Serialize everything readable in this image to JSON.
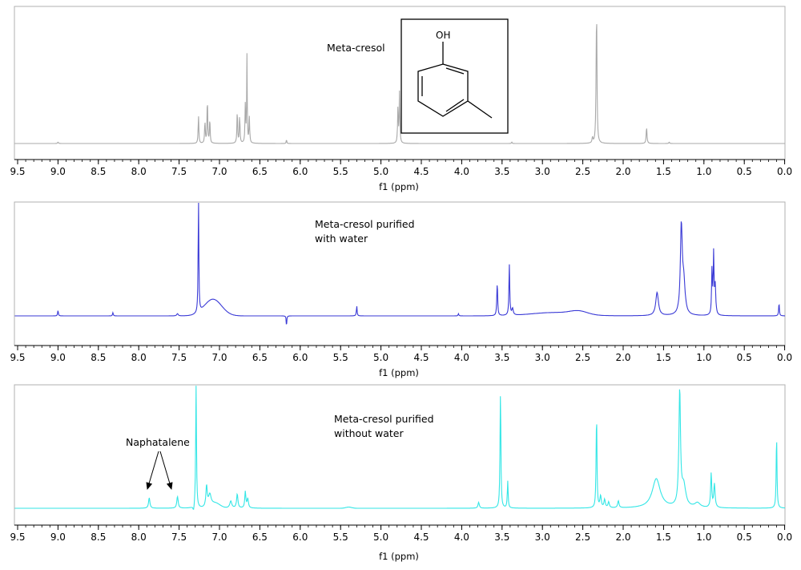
{
  "chart_data": [
    {
      "type": "line",
      "title": "",
      "xlabel": "f1 (ppm)",
      "ylabel": "",
      "xlim": [
        9.5,
        0.0
      ],
      "x_reversed": true,
      "xticks": [
        "9.5",
        "9.0",
        "8.5",
        "8.0",
        "7.5",
        "7.0",
        "6.5",
        "6.0",
        "5.5",
        "5.0",
        "4.5",
        "4.0",
        "3.5",
        "3.0",
        "2.5",
        "2.0",
        "1.5",
        "1.0",
        "0.5",
        "0.0"
      ],
      "grid": false,
      "legend": "none",
      "annotations": [
        "Meta-cresol"
      ],
      "structure_label": "OH",
      "series": [
        {
          "color": "#a8a8a8",
          "peaks": [
            {
              "x": 9.0,
              "h": 0.01,
              "w": 0.006
            },
            {
              "x": 7.26,
              "h": 0.2,
              "w": 0.005
            },
            {
              "x": 7.18,
              "h": 0.16,
              "w": 0.005
            },
            {
              "x": 7.15,
              "h": 0.33,
              "w": 0.005
            },
            {
              "x": 7.12,
              "h": 0.18,
              "w": 0.005
            },
            {
              "x": 6.78,
              "h": 0.24,
              "w": 0.005
            },
            {
              "x": 6.75,
              "h": 0.2,
              "w": 0.005
            },
            {
              "x": 6.68,
              "h": 0.28,
              "w": 0.005
            },
            {
              "x": 6.66,
              "h": 0.64,
              "w": 0.004
            },
            {
              "x": 6.63,
              "h": 0.19,
              "w": 0.005
            },
            {
              "x": 6.17,
              "h": 0.03,
              "w": 0.004
            },
            {
              "x": 4.79,
              "h": 0.26,
              "w": 0.005
            },
            {
              "x": 4.77,
              "h": 0.38,
              "w": 0.005
            },
            {
              "x": 3.38,
              "h": 0.01,
              "w": 0.005
            },
            {
              "x": 2.38,
              "h": 0.04,
              "w": 0.006
            },
            {
              "x": 2.33,
              "h": 1.0,
              "w": 0.006
            },
            {
              "x": 1.71,
              "h": 0.12,
              "w": 0.006
            },
            {
              "x": 1.43,
              "h": 0.01,
              "w": 0.006
            }
          ],
          "bumps": []
        },
        {
          "color": "#3a3ad6",
          "peaks": [
            {
              "x": 9.0,
              "h": 0.05,
              "w": 0.005
            },
            {
              "x": 8.32,
              "h": 0.03,
              "w": 0.005
            },
            {
              "x": 7.52,
              "h": 0.02,
              "w": 0.01
            },
            {
              "x": 7.26,
              "h": 1.0,
              "w": 0.005
            },
            {
              "x": 6.17,
              "h": 0.12,
              "w": 0.004
            },
            {
              "x": 5.3,
              "h": 0.09,
              "w": 0.005
            },
            {
              "x": 4.04,
              "h": 0.02,
              "w": 0.005
            },
            {
              "x": 3.56,
              "h": 0.3,
              "w": 0.006
            },
            {
              "x": 3.41,
              "h": 0.46,
              "w": 0.006
            },
            {
              "x": 3.37,
              "h": 0.06,
              "w": 0.01
            },
            {
              "x": 1.58,
              "h": 0.21,
              "w": 0.02
            },
            {
              "x": 1.28,
              "h": 0.78,
              "w": 0.014
            },
            {
              "x": 1.25,
              "h": 0.28,
              "w": 0.02
            },
            {
              "x": 0.9,
              "h": 0.4,
              "w": 0.006
            },
            {
              "x": 0.88,
              "h": 0.54,
              "w": 0.006
            },
            {
              "x": 0.86,
              "h": 0.26,
              "w": 0.008
            },
            {
              "x": 0.07,
              "h": 0.12,
              "w": 0.005
            }
          ],
          "bumps": [
            {
              "x": 7.08,
              "h": 0.15,
              "w": 0.15
            },
            {
              "x": 2.85,
              "h": 0.03,
              "w": 0.4
            },
            {
              "x": 2.55,
              "h": 0.03,
              "w": 0.15
            }
          ],
          "negative_peaks": [
            {
              "x": 6.17,
              "h": 0.22,
              "w": 0.004
            }
          ]
        },
        {
          "color": "#33e6e6",
          "peaks": [
            {
              "x": 7.87,
              "h": 0.09,
              "w": 0.01
            },
            {
              "x": 7.52,
              "h": 0.1,
              "w": 0.01
            },
            {
              "x": 7.29,
              "h": 1.05,
              "w": 0.006
            },
            {
              "x": 7.16,
              "h": 0.18,
              "w": 0.01
            },
            {
              "x": 7.12,
              "h": 0.1,
              "w": 0.02
            },
            {
              "x": 6.86,
              "h": 0.06,
              "w": 0.015
            },
            {
              "x": 6.78,
              "h": 0.12,
              "w": 0.01
            },
            {
              "x": 6.68,
              "h": 0.14,
              "w": 0.008
            },
            {
              "x": 6.65,
              "h": 0.08,
              "w": 0.01
            },
            {
              "x": 3.79,
              "h": 0.05,
              "w": 0.01
            },
            {
              "x": 3.52,
              "h": 1.0,
              "w": 0.006
            },
            {
              "x": 3.43,
              "h": 0.23,
              "w": 0.006
            },
            {
              "x": 2.33,
              "h": 0.81,
              "w": 0.006
            },
            {
              "x": 2.28,
              "h": 0.1,
              "w": 0.01
            },
            {
              "x": 2.23,
              "h": 0.07,
              "w": 0.01
            },
            {
              "x": 2.18,
              "h": 0.05,
              "w": 0.01
            },
            {
              "x": 2.06,
              "h": 0.06,
              "w": 0.01
            },
            {
              "x": 1.59,
              "h": 0.25,
              "w": 0.06
            },
            {
              "x": 1.3,
              "h": 0.98,
              "w": 0.012
            },
            {
              "x": 1.25,
              "h": 0.18,
              "w": 0.03
            },
            {
              "x": 1.08,
              "h": 0.04,
              "w": 0.04
            },
            {
              "x": 0.91,
              "h": 0.29,
              "w": 0.008
            },
            {
              "x": 0.87,
              "h": 0.2,
              "w": 0.01
            },
            {
              "x": 0.1,
              "h": 0.62,
              "w": 0.006
            }
          ],
          "bumps": [
            {
              "x": 7.05,
              "h": 0.04,
              "w": 0.08
            },
            {
              "x": 5.4,
              "h": 0.01,
              "w": 0.05
            }
          ],
          "negative_peaks": [
            {
              "x": 7.32,
              "h": 0.05,
              "w": 0.01
            }
          ]
        }
      ]
    }
  ],
  "panels": [
    {
      "annotations": [
        "Meta-cresol"
      ],
      "xlabel": "f1 (ppm)"
    },
    {
      "annotations": [
        "Meta-cresol purified",
        "with water"
      ],
      "xlabel": "f1 (ppm)"
    },
    {
      "annotations": [
        "Meta-cresol purified",
        "without water"
      ],
      "xlabel": "f1 (ppm)",
      "callout": "Naphatalene",
      "callout_targets_ppm": [
        7.87,
        7.52
      ]
    }
  ]
}
